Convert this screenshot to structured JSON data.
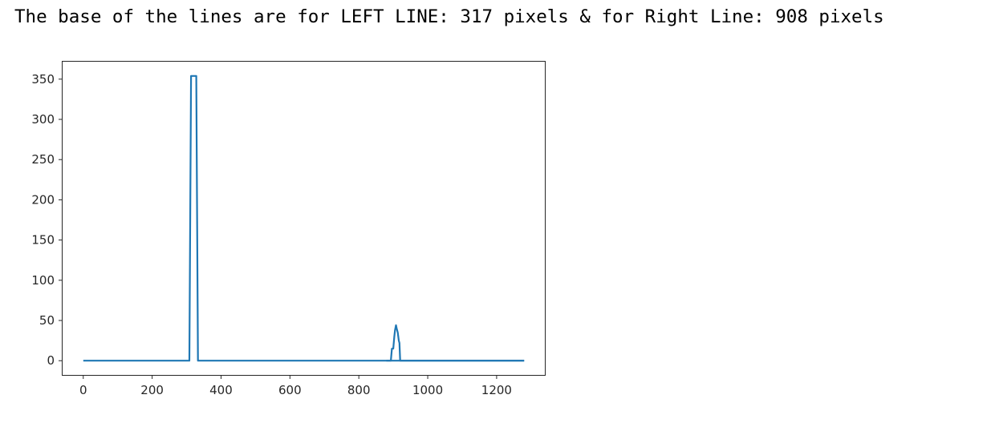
{
  "output_text": "The base of the lines are for LEFT LINE: 317 pixels & for Right Line: 908 pixels",
  "colors": {
    "line": "#1f77b4",
    "axes": "#262626",
    "text": "#000000"
  },
  "chart_data": {
    "type": "line",
    "title": "",
    "xlabel": "",
    "ylabel": "",
    "xlim": [
      -60,
      1340
    ],
    "ylim": [
      -17.7,
      371.7
    ],
    "xticks": [
      0,
      200,
      400,
      600,
      800,
      1000,
      1200
    ],
    "yticks": [
      0,
      50,
      100,
      150,
      200,
      250,
      300,
      350
    ],
    "grid": false,
    "series": [
      {
        "x": [
          0,
          308,
          313,
          318,
          328,
          333,
          1280
        ],
        "y": [
          0,
          0,
          354,
          354,
          354,
          0,
          0
        ]
      },
      {
        "x": [
          880,
          893,
          896,
          898,
          900,
          903,
          905,
          908,
          910,
          913,
          916,
          918,
          920,
          1280
        ],
        "y": [
          0,
          0,
          15,
          15,
          15,
          30,
          38,
          44,
          40,
          35,
          25,
          22,
          0,
          0
        ]
      }
    ]
  }
}
